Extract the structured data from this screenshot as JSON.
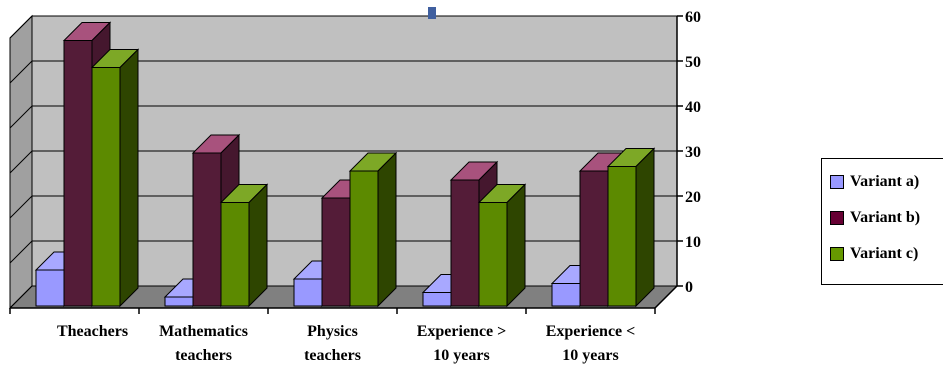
{
  "chart_data": {
    "type": "bar",
    "categories": [
      [
        "Theachers"
      ],
      [
        "Mathematics",
        "teachers"
      ],
      [
        "Physics",
        "teachers"
      ],
      [
        "Experience >",
        "10 years"
      ],
      [
        "Experience <",
        "10 years"
      ]
    ],
    "series": [
      {
        "name": "Variant a)",
        "values": [
          8,
          2,
          6,
          3,
          5
        ],
        "color": "#9999ff"
      },
      {
        "name": "Variant b)",
        "values": [
          59,
          34,
          24,
          28,
          30
        ],
        "color": "#993366"
      },
      {
        "name": "Variant c)",
        "values": [
          53,
          23,
          30,
          23,
          31
        ],
        "color": "#669900"
      }
    ],
    "ylim": [
      0,
      60
    ],
    "yticks": [
      0,
      10,
      20,
      30,
      40,
      50,
      60
    ],
    "y_axis_side": "right",
    "grid": true,
    "wall_color": "#c0c0c0",
    "legend_position": "right"
  }
}
